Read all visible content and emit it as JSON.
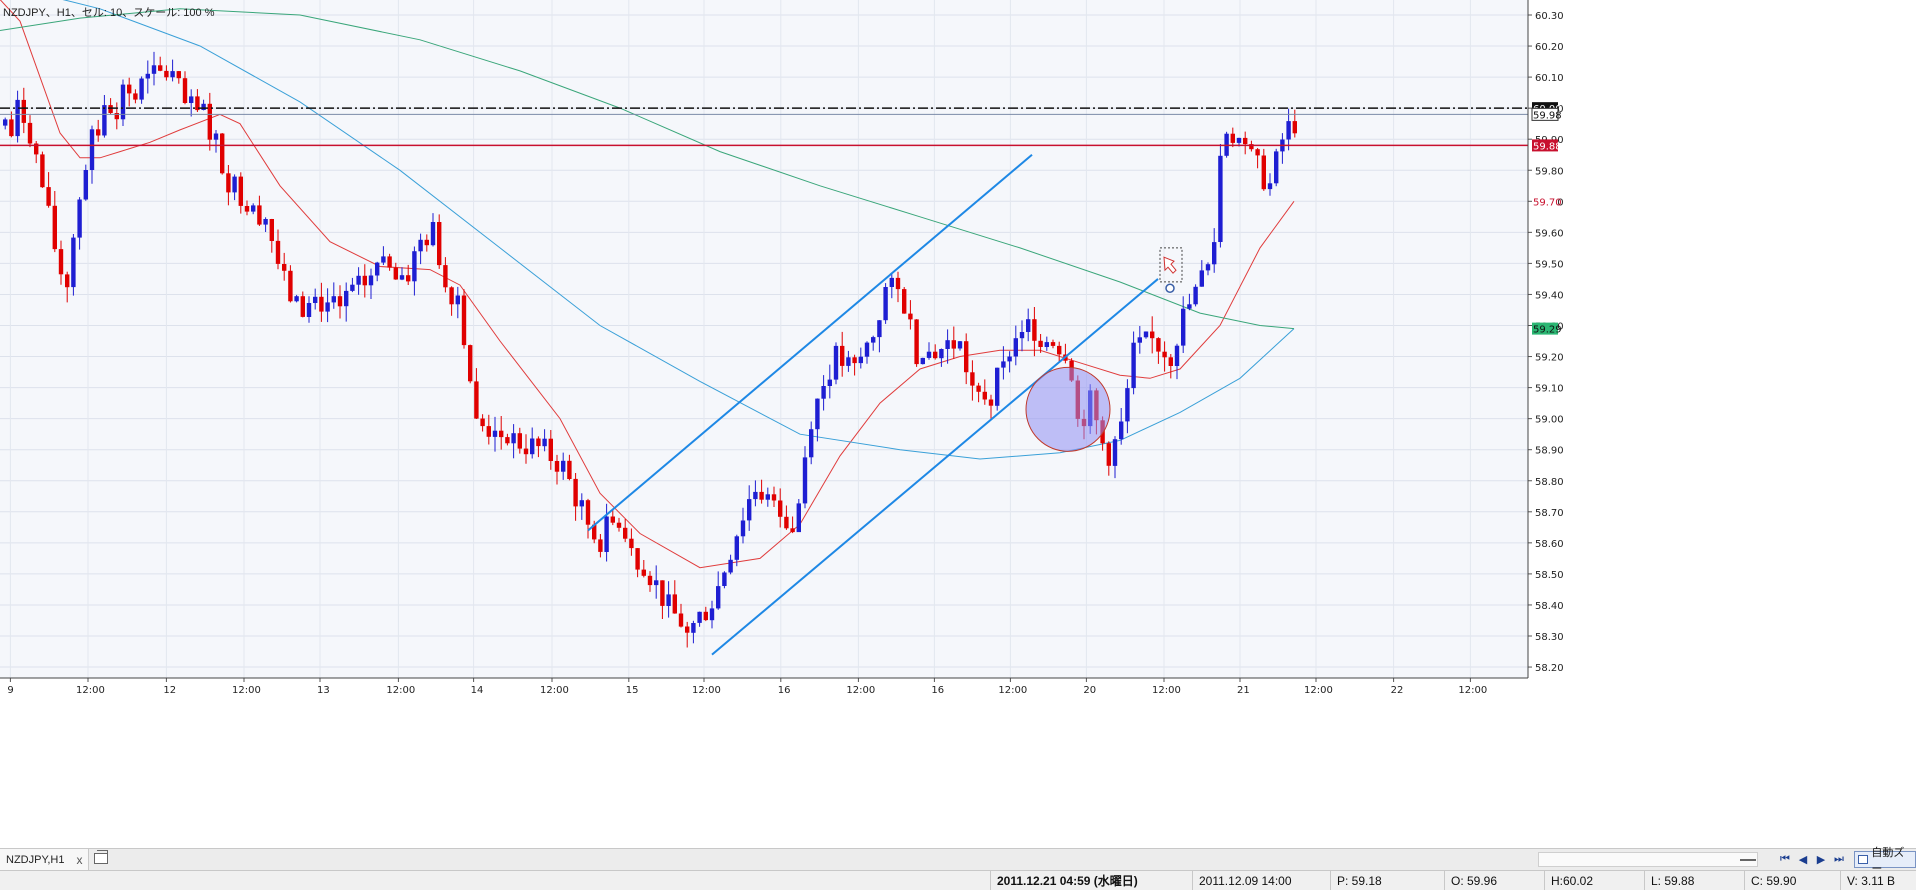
{
  "chart_title": "NZDJPY、H1、セル: 10、スケール: 100 %",
  "tab": {
    "label": "NZDJPY,H1",
    "close": "x"
  },
  "nav": {
    "first": "⏮",
    "prev": "◀",
    "next": "▶",
    "last": "⏭"
  },
  "autoscroll_label": "自動ズー",
  "status": {
    "server_time": "2011.12.21 04:59 (水曜日)",
    "bar_time": "2011.12.09 14:00",
    "p": "P: 59.18",
    "o": "O: 59.96",
    "h": "H:60.02",
    "l": "L: 59.88",
    "c": "C: 59.90",
    "v": "V: 3.11 B"
  },
  "colors": {
    "background": "#f5f7fb",
    "bull_candle": "#1e1ed2",
    "bear_candle": "#e00000",
    "ma_fast": "#e03c3c",
    "ma_mid": "#3aa0d8",
    "ma_slow": "#3aa67a",
    "trendlines": "#1e88e5",
    "resistance_line": "#c8102e",
    "highlight_circle": "#8f8ff2"
  },
  "price_axis": {
    "ticks": [
      "60.30",
      "60.20",
      "60.10",
      "60.00",
      "59.90",
      "59.80",
      "59.70",
      "59.60",
      "59.50",
      "59.40",
      "59.30",
      "59.20",
      "59.10",
      "59.00",
      "58.90",
      "58.80",
      "58.70",
      "58.60",
      "58.50",
      "58.40",
      "58.30",
      "58.20"
    ]
  },
  "price_tags": [
    {
      "label": "60.00",
      "style": "dark"
    },
    {
      "label": "59.98",
      "style": "light"
    },
    {
      "label": "59.88",
      "style": "red"
    },
    {
      "label": "59.70",
      "style": "redtext"
    },
    {
      "label": "59.29",
      "style": "green"
    }
  ],
  "time_axis": {
    "ticks": [
      "9",
      "12:00",
      "12",
      "12:00",
      "13",
      "12:00",
      "14",
      "12:00",
      "15",
      "12:00",
      "16",
      "12:00",
      "16",
      "12:00",
      "20",
      "12:00",
      "21",
      "12:00",
      "22",
      "12:00"
    ]
  },
  "chart_data": {
    "type": "candlestick",
    "symbol": "NZDJPY",
    "timeframe": "H1",
    "ylim": [
      58.2,
      60.3
    ],
    "horizontal_lines": [
      60.0,
      59.98,
      59.88
    ],
    "anchors": [
      [
        0,
        59.97
      ],
      [
        8,
        59.9
      ],
      [
        16,
        60.0
      ],
      [
        26,
        59.95
      ],
      [
        40,
        59.75
      ],
      [
        48,
        59.62
      ],
      [
        56,
        59.5
      ],
      [
        64,
        59.42
      ],
      [
        76,
        59.7
      ],
      [
        88,
        59.88
      ],
      [
        104,
        60.0
      ],
      [
        128,
        60.05
      ],
      [
        152,
        60.1
      ],
      [
        168,
        60.12
      ],
      [
        184,
        60.0
      ],
      [
        200,
        59.98
      ],
      [
        212,
        59.9
      ],
      [
        224,
        59.78
      ],
      [
        240,
        59.72
      ],
      [
        264,
        59.65
      ],
      [
        280,
        59.45
      ],
      [
        296,
        59.35
      ],
      [
        320,
        59.38
      ],
      [
        340,
        59.36
      ],
      [
        360,
        59.43
      ],
      [
        380,
        59.5
      ],
      [
        400,
        59.42
      ],
      [
        420,
        59.58
      ],
      [
        432,
        59.6
      ],
      [
        444,
        59.42
      ],
      [
        456,
        59.4
      ],
      [
        466,
        59.18
      ],
      [
        474,
        58.98
      ],
      [
        500,
        58.95
      ],
      [
        520,
        58.92
      ],
      [
        540,
        58.9
      ],
      [
        560,
        58.85
      ],
      [
        580,
        58.7
      ],
      [
        596,
        58.6
      ],
      [
        612,
        58.68
      ],
      [
        628,
        58.58
      ],
      [
        648,
        58.5
      ],
      [
        668,
        58.38
      ],
      [
        688,
        58.32
      ],
      [
        712,
        58.42
      ],
      [
        736,
        58.65
      ],
      [
        752,
        58.78
      ],
      [
        776,
        58.72
      ],
      [
        792,
        58.63
      ],
      [
        808,
        59.0
      ],
      [
        832,
        59.2
      ],
      [
        852,
        59.15
      ],
      [
        872,
        59.28
      ],
      [
        884,
        59.42
      ],
      [
        900,
        59.4
      ],
      [
        916,
        59.2
      ],
      [
        936,
        59.22
      ],
      [
        956,
        59.25
      ],
      [
        972,
        59.08
      ],
      [
        990,
        59.08
      ],
      [
        1006,
        59.22
      ],
      [
        1024,
        59.3
      ],
      [
        1044,
        59.28
      ],
      [
        1068,
        59.2
      ],
      [
        1076,
        58.98
      ],
      [
        1088,
        59.05
      ],
      [
        1100,
        58.92
      ],
      [
        1108,
        58.88
      ],
      [
        1120,
        58.98
      ],
      [
        1132,
        59.22
      ],
      [
        1152,
        59.25
      ],
      [
        1168,
        59.2
      ],
      [
        1180,
        59.32
      ],
      [
        1196,
        59.42
      ],
      [
        1206,
        59.5
      ],
      [
        1214,
        59.6
      ],
      [
        1220,
        59.95
      ],
      [
        1236,
        59.9
      ],
      [
        1252,
        59.82
      ],
      [
        1268,
        59.75
      ],
      [
        1282,
        59.92
      ],
      [
        1294,
        59.96
      ]
    ],
    "moving_averages": [
      {
        "color": "ma_fast",
        "points": [
          [
            0,
            60.35
          ],
          [
            20,
            60.28
          ],
          [
            40,
            60.1
          ],
          [
            60,
            59.92
          ],
          [
            80,
            59.84
          ],
          [
            100,
            59.84
          ],
          [
            120,
            59.86
          ],
          [
            150,
            59.89
          ],
          [
            180,
            59.93
          ],
          [
            220,
            59.98
          ],
          [
            240,
            59.95
          ],
          [
            280,
            59.75
          ],
          [
            330,
            59.57
          ],
          [
            380,
            59.49
          ],
          [
            430,
            59.48
          ],
          [
            460,
            59.43
          ],
          [
            500,
            59.25
          ],
          [
            560,
            59.0
          ],
          [
            600,
            58.76
          ],
          [
            640,
            58.63
          ],
          [
            700,
            58.52
          ],
          [
            760,
            58.55
          ],
          [
            800,
            58.66
          ],
          [
            840,
            58.88
          ],
          [
            880,
            59.05
          ],
          [
            920,
            59.16
          ],
          [
            960,
            59.2
          ],
          [
            1000,
            59.22
          ],
          [
            1040,
            59.22
          ],
          [
            1080,
            59.18
          ],
          [
            1120,
            59.14
          ],
          [
            1150,
            59.13
          ],
          [
            1180,
            59.16
          ],
          [
            1220,
            59.3
          ],
          [
            1260,
            59.55
          ],
          [
            1294,
            59.7
          ]
        ]
      },
      {
        "color": "ma_mid",
        "points": [
          [
            0,
            60.4
          ],
          [
            100,
            60.32
          ],
          [
            200,
            60.2
          ],
          [
            300,
            60.02
          ],
          [
            400,
            59.8
          ],
          [
            500,
            59.55
          ],
          [
            600,
            59.3
          ],
          [
            700,
            59.12
          ],
          [
            800,
            58.95
          ],
          [
            900,
            58.9
          ],
          [
            980,
            58.87
          ],
          [
            1060,
            58.89
          ],
          [
            1120,
            58.93
          ],
          [
            1180,
            59.02
          ],
          [
            1240,
            59.13
          ],
          [
            1294,
            59.29
          ]
        ]
      },
      {
        "color": "ma_slow",
        "points": [
          [
            0,
            60.25
          ],
          [
            80,
            60.29
          ],
          [
            180,
            60.32
          ],
          [
            300,
            60.3
          ],
          [
            420,
            60.22
          ],
          [
            520,
            60.12
          ],
          [
            620,
            60.0
          ],
          [
            720,
            59.86
          ],
          [
            820,
            59.75
          ],
          [
            920,
            59.65
          ],
          [
            1020,
            59.55
          ],
          [
            1120,
            59.44
          ],
          [
            1200,
            59.34
          ],
          [
            1260,
            59.3
          ],
          [
            1294,
            59.29
          ]
        ]
      }
    ],
    "trendlines": [
      {
        "x1": 588,
        "y1": 58.64,
        "x2": 1032,
        "y2": 59.85
      },
      {
        "x1": 712,
        "y1": 58.24,
        "x2": 1158,
        "y2": 59.45
      }
    ],
    "highlight_circle": {
      "cx": 1068,
      "cy": 59.03,
      "r": 42
    },
    "last_bar_x": 1294
  }
}
